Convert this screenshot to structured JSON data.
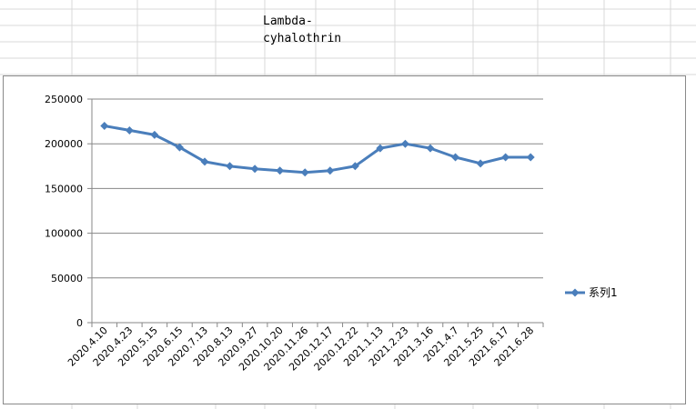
{
  "sheet": {
    "title_cell_text": "Lambda-cyhalothrin"
  },
  "chart_data": {
    "type": "line",
    "title": "",
    "xlabel": "",
    "ylabel": "",
    "categories": [
      "2020.4.10",
      "2020.4.23",
      "2020.5.15",
      "2020.6.15",
      "2020.7.13",
      "2020.8.13",
      "2020.9.27",
      "2020.10.20",
      "2020.11.26",
      "2020.12.17",
      "2020.12.22",
      "2021.1.13",
      "2021.2.23",
      "2021.3.16",
      "2021.4.7",
      "2021.5.25",
      "2021.6.17",
      "2021.6.28"
    ],
    "series": [
      {
        "name": "系列1",
        "values": [
          220000,
          215000,
          210000,
          196000,
          180000,
          175000,
          172000,
          170000,
          168000,
          170000,
          175000,
          195000,
          200000,
          195000,
          185000,
          178000,
          185000,
          185000
        ]
      }
    ],
    "ylim": [
      0,
      250000
    ],
    "yticks": [
      0,
      50000,
      100000,
      150000,
      200000,
      250000
    ],
    "grid": true,
    "legend": "right",
    "colors": {
      "series": "#4a7ebb",
      "gridline": "#878787",
      "axis": "#878787"
    }
  }
}
